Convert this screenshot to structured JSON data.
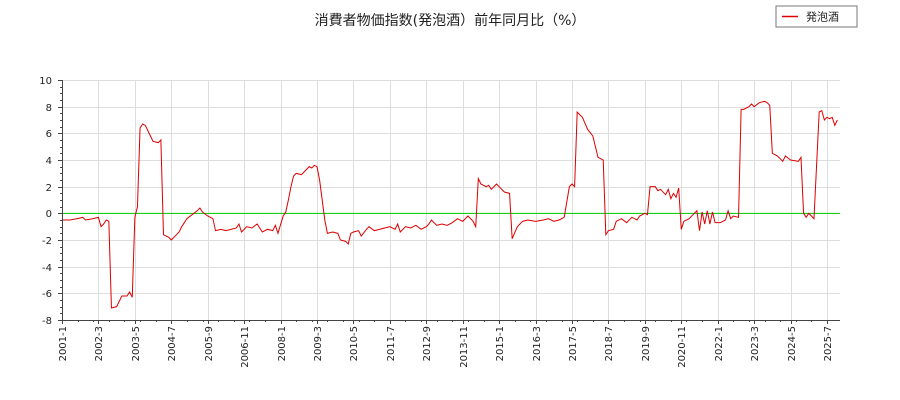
{
  "chart_data": {
    "type": "line",
    "title": "消費者物価指数(発泡酒）前年同月比（%）",
    "xlabel": "",
    "ylabel": "",
    "ylim": [
      -8,
      10
    ],
    "yticks": [
      -8,
      -6,
      -4,
      -2,
      0,
      2,
      4,
      6,
      8,
      10
    ],
    "ytick_labels": [
      "-8",
      "-6",
      "-4",
      "-2",
      "0",
      "2",
      "4",
      "6",
      "8",
      "10"
    ],
    "xlim": [
      "2001-01",
      "2025-12"
    ],
    "xtick_labels": [
      "2001-1",
      "2002-3",
      "2003-5",
      "2004-7",
      "2005-9",
      "2006-11",
      "2008-1",
      "2009-3",
      "2010-5",
      "2011-7",
      "2012-9",
      "2013-11",
      "2015-1",
      "2016-3",
      "2017-5",
      "2018-7",
      "2019-9",
      "2020-11",
      "2022-1",
      "2023-3",
      "2024-5",
      "2025-7"
    ],
    "grid": true,
    "legend_position": "top-right",
    "reference_line": {
      "y": 0,
      "color": "#00cc00"
    },
    "series": [
      {
        "name": "発泡酒",
        "color": "#dd0000",
        "points": [
          [
            "2001-01",
            -0.5
          ],
          [
            "2001-04",
            -0.5
          ],
          [
            "2001-07",
            -0.4
          ],
          [
            "2001-09",
            -0.3
          ],
          [
            "2001-10",
            -0.5
          ],
          [
            "2002-01",
            -0.4
          ],
          [
            "2002-03",
            -0.3
          ],
          [
            "2002-04",
            -1.0
          ],
          [
            "2002-05",
            -0.8
          ],
          [
            "2002-06",
            -0.5
          ],
          [
            "2002-07",
            -0.6
          ],
          [
            "2002-08",
            -7.1
          ],
          [
            "2002-10",
            -7.0
          ],
          [
            "2002-12",
            -6.2
          ],
          [
            "2003-02",
            -6.2
          ],
          [
            "2003-03",
            -5.9
          ],
          [
            "2003-04",
            -6.3
          ],
          [
            "2003-05",
            -0.3
          ],
          [
            "2003-06",
            0.5
          ],
          [
            "2003-07",
            6.4
          ],
          [
            "2003-08",
            6.7
          ],
          [
            "2003-09",
            6.6
          ],
          [
            "2003-11",
            5.8
          ],
          [
            "2003-12",
            5.4
          ],
          [
            "2004-02",
            5.3
          ],
          [
            "2004-03",
            5.5
          ],
          [
            "2004-04",
            -1.6
          ],
          [
            "2004-06",
            -1.8
          ],
          [
            "2004-07",
            -2.0
          ],
          [
            "2004-09",
            -1.6
          ],
          [
            "2004-10",
            -1.4
          ],
          [
            "2004-11",
            -1.0
          ],
          [
            "2005-01",
            -0.4
          ],
          [
            "2005-03",
            -0.1
          ],
          [
            "2005-05",
            0.2
          ],
          [
            "2005-06",
            0.4
          ],
          [
            "2005-07",
            0.1
          ],
          [
            "2005-09",
            -0.2
          ],
          [
            "2005-11",
            -0.4
          ],
          [
            "2005-12",
            -1.3
          ],
          [
            "2006-02",
            -1.2
          ],
          [
            "2006-04",
            -1.3
          ],
          [
            "2006-06",
            -1.2
          ],
          [
            "2006-08",
            -1.1
          ],
          [
            "2006-09",
            -0.8
          ],
          [
            "2006-10",
            -1.4
          ],
          [
            "2006-12",
            -1.0
          ],
          [
            "2007-02",
            -1.1
          ],
          [
            "2007-04",
            -0.8
          ],
          [
            "2007-06",
            -1.4
          ],
          [
            "2007-08",
            -1.2
          ],
          [
            "2007-10",
            -1.3
          ],
          [
            "2007-11",
            -0.9
          ],
          [
            "2007-12",
            -1.5
          ],
          [
            "2008-02",
            -0.2
          ],
          [
            "2008-03",
            0.1
          ],
          [
            "2008-04",
            1.0
          ],
          [
            "2008-05",
            2.0
          ],
          [
            "2008-06",
            2.8
          ],
          [
            "2008-07",
            3.0
          ],
          [
            "2008-09",
            2.9
          ],
          [
            "2008-10",
            3.1
          ],
          [
            "2008-12",
            3.5
          ],
          [
            "2009-01",
            3.4
          ],
          [
            "2009-02",
            3.6
          ],
          [
            "2009-03",
            3.5
          ],
          [
            "2009-04",
            2.5
          ],
          [
            "2009-05",
            1.0
          ],
          [
            "2009-06",
            -0.5
          ],
          [
            "2009-07",
            -1.5
          ],
          [
            "2009-09",
            -1.4
          ],
          [
            "2009-11",
            -1.5
          ],
          [
            "2009-12",
            -2.0
          ],
          [
            "2010-02",
            -2.1
          ],
          [
            "2010-03",
            -2.3
          ],
          [
            "2010-04",
            -1.5
          ],
          [
            "2010-05",
            -1.4
          ],
          [
            "2010-07",
            -1.3
          ],
          [
            "2010-08",
            -1.7
          ],
          [
            "2010-10",
            -1.2
          ],
          [
            "2010-11",
            -1.0
          ],
          [
            "2011-01",
            -1.3
          ],
          [
            "2011-03",
            -1.2
          ],
          [
            "2011-05",
            -1.1
          ],
          [
            "2011-07",
            -1.0
          ],
          [
            "2011-09",
            -1.2
          ],
          [
            "2011-10",
            -0.8
          ],
          [
            "2011-11",
            -1.4
          ],
          [
            "2012-01",
            -1.0
          ],
          [
            "2012-03",
            -1.1
          ],
          [
            "2012-05",
            -0.9
          ],
          [
            "2012-07",
            -1.2
          ],
          [
            "2012-09",
            -1.0
          ],
          [
            "2012-10",
            -0.8
          ],
          [
            "2012-11",
            -0.5
          ],
          [
            "2013-01",
            -0.9
          ],
          [
            "2013-03",
            -0.8
          ],
          [
            "2013-05",
            -0.9
          ],
          [
            "2013-07",
            -0.7
          ],
          [
            "2013-09",
            -0.4
          ],
          [
            "2013-11",
            -0.6
          ],
          [
            "2014-01",
            -0.2
          ],
          [
            "2014-03",
            -0.6
          ],
          [
            "2014-04",
            -1.0
          ],
          [
            "2014-05",
            2.6
          ],
          [
            "2014-06",
            2.2
          ],
          [
            "2014-08",
            2.0
          ],
          [
            "2014-09",
            2.1
          ],
          [
            "2014-10",
            1.8
          ],
          [
            "2014-12",
            2.2
          ],
          [
            "2015-01",
            2.0
          ],
          [
            "2015-03",
            1.6
          ],
          [
            "2015-05",
            1.5
          ],
          [
            "2015-06",
            -1.9
          ],
          [
            "2015-08",
            -1.0
          ],
          [
            "2015-10",
            -0.6
          ],
          [
            "2015-12",
            -0.5
          ],
          [
            "2016-03",
            -0.6
          ],
          [
            "2016-06",
            -0.5
          ],
          [
            "2016-08",
            -0.4
          ],
          [
            "2016-10",
            -0.6
          ],
          [
            "2016-12",
            -0.5
          ],
          [
            "2017-02",
            -0.3
          ],
          [
            "2017-04",
            2.0
          ],
          [
            "2017-05",
            2.2
          ],
          [
            "2017-06",
            2.0
          ],
          [
            "2017-07",
            7.6
          ],
          [
            "2017-09",
            7.2
          ],
          [
            "2017-11",
            6.3
          ],
          [
            "2018-01",
            5.8
          ],
          [
            "2018-02",
            5.0
          ],
          [
            "2018-03",
            4.2
          ],
          [
            "2018-05",
            4.0
          ],
          [
            "2018-06",
            -1.6
          ],
          [
            "2018-07",
            -1.3
          ],
          [
            "2018-09",
            -1.2
          ],
          [
            "2018-10",
            -0.6
          ],
          [
            "2018-12",
            -0.4
          ],
          [
            "2019-02",
            -0.7
          ],
          [
            "2019-04",
            -0.3
          ],
          [
            "2019-06",
            -0.5
          ],
          [
            "2019-07",
            -0.2
          ],
          [
            "2019-09",
            0.0
          ],
          [
            "2019-10",
            -0.1
          ],
          [
            "2019-11",
            2.0
          ],
          [
            "2020-01",
            2.0
          ],
          [
            "2020-02",
            1.7
          ],
          [
            "2020-03",
            1.8
          ],
          [
            "2020-05",
            1.4
          ],
          [
            "2020-06",
            1.8
          ],
          [
            "2020-07",
            1.1
          ],
          [
            "2020-08",
            1.5
          ],
          [
            "2020-09",
            1.2
          ],
          [
            "2020-10",
            1.9
          ],
          [
            "2020-11",
            -1.2
          ],
          [
            "2020-12",
            -0.6
          ],
          [
            "2021-02",
            -0.4
          ],
          [
            "2021-04",
            0.0
          ],
          [
            "2021-05",
            0.2
          ],
          [
            "2021-06",
            -1.3
          ],
          [
            "2021-07",
            0.1
          ],
          [
            "2021-08",
            -0.8
          ],
          [
            "2021-09",
            0.2
          ],
          [
            "2021-10",
            -0.8
          ],
          [
            "2021-11",
            0.1
          ],
          [
            "2021-12",
            -0.7
          ],
          [
            "2022-02",
            -0.7
          ],
          [
            "2022-04",
            -0.5
          ],
          [
            "2022-05",
            0.2
          ],
          [
            "2022-06",
            -0.4
          ],
          [
            "2022-07",
            -0.2
          ],
          [
            "2022-09",
            -0.3
          ],
          [
            "2022-10",
            7.8
          ],
          [
            "2022-11",
            7.8
          ],
          [
            "2022-12",
            7.9
          ],
          [
            "2023-01",
            8.0
          ],
          [
            "2023-02",
            8.2
          ],
          [
            "2023-03",
            8.0
          ],
          [
            "2023-05",
            8.3
          ],
          [
            "2023-07",
            8.4
          ],
          [
            "2023-08",
            8.3
          ],
          [
            "2023-09",
            8.1
          ],
          [
            "2023-10",
            4.5
          ],
          [
            "2023-12",
            4.3
          ],
          [
            "2024-02",
            3.9
          ],
          [
            "2024-03",
            4.3
          ],
          [
            "2024-05",
            4.0
          ],
          [
            "2024-08",
            3.9
          ],
          [
            "2024-09",
            4.2
          ],
          [
            "2024-10",
            0.0
          ],
          [
            "2024-11",
            -0.3
          ],
          [
            "2024-12",
            0.0
          ],
          [
            "2025-01",
            -0.2
          ],
          [
            "2025-02",
            -0.4
          ],
          [
            "2025-04",
            7.6
          ],
          [
            "2025-05",
            7.7
          ],
          [
            "2025-06",
            7.0
          ],
          [
            "2025-07",
            7.2
          ],
          [
            "2025-08",
            7.1
          ],
          [
            "2025-09",
            7.2
          ],
          [
            "2025-10",
            6.6
          ],
          [
            "2025-11",
            7.0
          ]
        ]
      }
    ]
  }
}
